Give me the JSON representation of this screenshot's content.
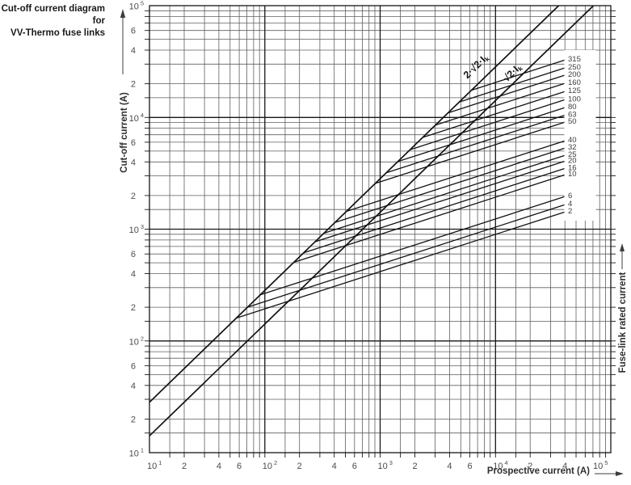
{
  "page": {
    "title_line1": "Cut-off current diagram for",
    "title_line2": "VV-Thermo fuse links"
  },
  "chart_data": {
    "type": "line",
    "scale": "log-log",
    "background": "#ffffff",
    "colors": {
      "grid_minor": "#5f5f5f",
      "grid_major": "#161616",
      "curves": "#121212",
      "tick_text": "#4c4c4c"
    },
    "x_axis": {
      "label": "Prospective current (A)",
      "min": 10,
      "max": 100000,
      "decade_exponents": [
        1,
        2,
        3,
        4,
        5
      ],
      "minor_tick_labels": [
        [
          "2",
          "4",
          "6"
        ],
        [
          "2",
          "4",
          "6"
        ],
        [
          "2",
          "4",
          "6"
        ],
        [
          "2",
          "4"
        ]
      ]
    },
    "y_axis": {
      "label": "Cut-off current (A)",
      "min": 10,
      "max": 100000,
      "decade_exponents": [
        1,
        2,
        3,
        4,
        5
      ],
      "minor_tick_labels": [
        [
          "2",
          "4",
          "6"
        ],
        [
          "2",
          "4",
          "6"
        ],
        [
          "2",
          "4",
          "6"
        ],
        [
          "2",
          "4",
          "6"
        ]
      ]
    },
    "right_axis_label": "Fuse-link rated current",
    "grid": {
      "minor_divisions": [
        1.5,
        2,
        3,
        4,
        5,
        6,
        7,
        8,
        9
      ],
      "grid_on": true
    },
    "reference_lines": [
      {
        "label": "2·√2·I",
        "sub": "k",
        "factor": 2.8284
      },
      {
        "label": "√2·I",
        "sub": "k",
        "factor": 1.4142
      }
    ],
    "fuse_lines": {
      "slope_loglog": 0.3333,
      "end_prospective_A": 42500,
      "takeover_on": "2·√2·Ik line",
      "series": [
        {
          "rating": "315",
          "cutoff_at_end_A": 33300
        },
        {
          "rating": "250",
          "cutoff_at_end_A": 28300
        },
        {
          "rating": "200",
          "cutoff_at_end_A": 24400
        },
        {
          "rating": "160",
          "cutoff_at_end_A": 20600
        },
        {
          "rating": "125",
          "cutoff_at_end_A": 17400
        },
        {
          "rating": "100",
          "cutoff_at_end_A": 14700
        },
        {
          "rating": "80",
          "cutoff_at_end_A": 12500
        },
        {
          "rating": "63",
          "cutoff_at_end_A": 10700
        },
        {
          "rating": "50",
          "cutoff_at_end_A": 9250
        },
        {
          "rating": "40",
          "cutoff_at_end_A": 6300
        },
        {
          "rating": "32",
          "cutoff_at_end_A": 5420
        },
        {
          "rating": "25",
          "cutoff_at_end_A": 4670
        },
        {
          "rating": "20",
          "cutoff_at_end_A": 4150
        },
        {
          "rating": "16",
          "cutoff_at_end_A": 3570
        },
        {
          "rating": "10",
          "cutoff_at_end_A": 3130
        },
        {
          "rating": "6",
          "cutoff_at_end_A": 2000
        },
        {
          "rating": "4",
          "cutoff_at_end_A": 1690
        },
        {
          "rating": "2",
          "cutoff_at_end_A": 1455
        }
      ]
    }
  }
}
